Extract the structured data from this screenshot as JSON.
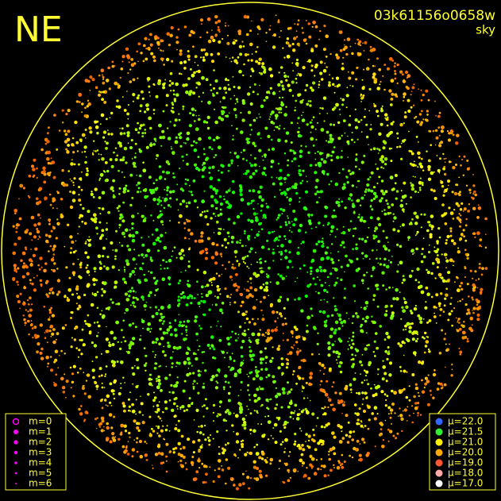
{
  "header": {
    "direction": "NE",
    "id": "03k61156o0658w",
    "label": "sky"
  },
  "magnitude_legend": [
    "m=0",
    "m=1",
    "m=2",
    "m=3",
    "m=4",
    "m=5",
    "m=6"
  ],
  "brightness_legend": [
    "μ=22.0",
    "μ=21.5",
    "μ=21.0",
    "μ=20.0",
    "μ=19.0",
    "μ=18.0",
    "μ=17.0"
  ]
}
